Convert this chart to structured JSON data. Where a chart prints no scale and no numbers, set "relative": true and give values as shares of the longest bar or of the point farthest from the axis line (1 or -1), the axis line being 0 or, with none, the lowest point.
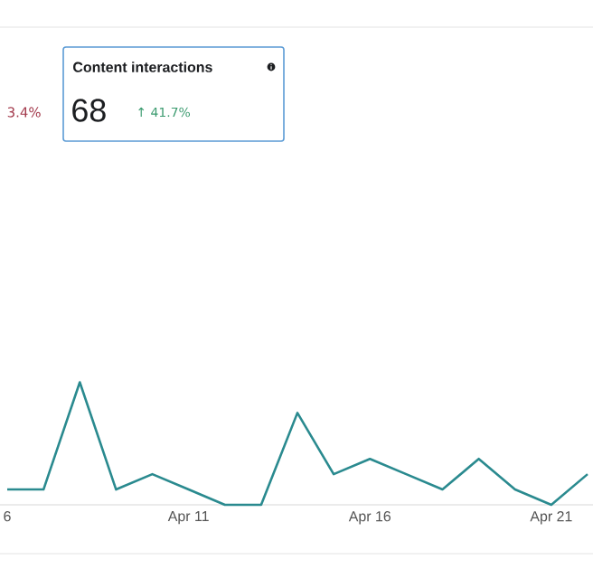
{
  "chart_data": {
    "type": "line",
    "title": "Content interactions",
    "relative": true,
    "annotations": [
      "3.4%",
      "68",
      "↑ 41.7%"
    ],
    "categories": [
      "6",
      null,
      null,
      null,
      null,
      "Apr 11",
      null,
      null,
      null,
      null,
      "Apr 16",
      null,
      null,
      null,
      null,
      "Apr 21",
      null
    ],
    "series": [
      {
        "color": "#2a8a8f",
        "values": [
          0.125,
          0.125,
          1,
          0.125,
          0.25,
          0.125,
          0,
          0,
          0.75,
          0.25,
          0.375,
          0.25,
          0.125,
          0.375,
          0.125,
          0,
          0.25
        ]
      }
    ],
    "marker": "none",
    "line_style": "solid"
  }
}
